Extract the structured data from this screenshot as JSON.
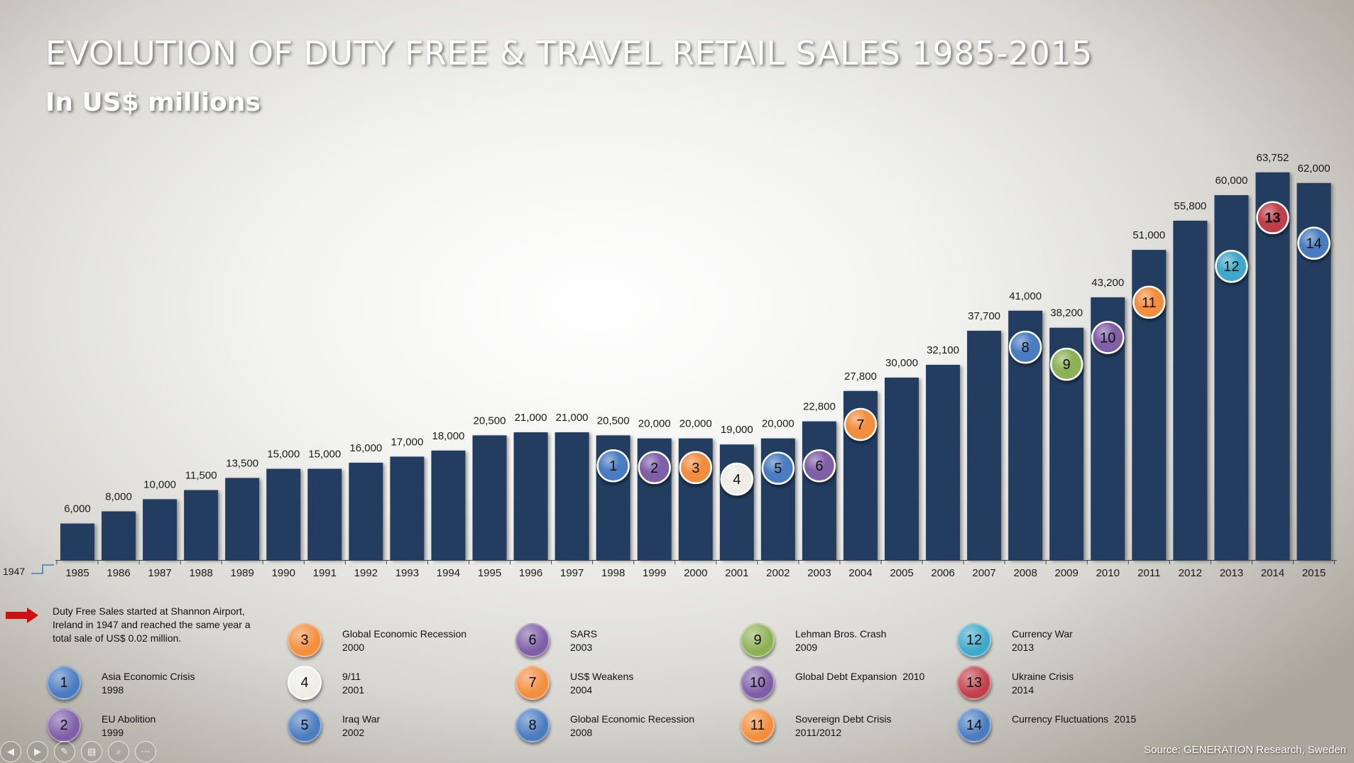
{
  "title": "EVOLUTION OF DUTY FREE & TRAVEL RETAIL SALES 1985-2015",
  "subtitle": "In US$ millions",
  "start_label": "1947",
  "note": "Duty Free Sales started at Shannon Airport, Ireland in 1947 and reached the same year a total sale of US$ 0.02 million.",
  "source": "Source: GENERATION Research, Sweden",
  "colors": {
    "bar": "#233d60",
    "axis": "#444444",
    "arrow": "#cc1111",
    "start_line": "#4a78b8"
  },
  "chart_data": {
    "type": "bar",
    "title": "EVOLUTION OF DUTY FREE & TRAVEL RETAIL SALES 1985-2015",
    "subtitle": "In US$ millions",
    "categories": [
      "1985",
      "1986",
      "1987",
      "1988",
      "1989",
      "1990",
      "1991",
      "1992",
      "1993",
      "1994",
      "1995",
      "1996",
      "1997",
      "1998",
      "1999",
      "2000",
      "2001",
      "2002",
      "2003",
      "2004",
      "2005",
      "2006",
      "2007",
      "2008",
      "2009",
      "2010",
      "2011",
      "2012",
      "2013",
      "2014",
      "2015"
    ],
    "values": [
      6000,
      8000,
      10000,
      11500,
      13500,
      15000,
      15000,
      16000,
      17000,
      18000,
      20500,
      21000,
      21000,
      20500,
      20000,
      20000,
      19000,
      20000,
      22800,
      27800,
      30000,
      32100,
      37700,
      41000,
      38200,
      43200,
      51000,
      55800,
      60000,
      63752,
      62000
    ],
    "value_labels": [
      "6,000",
      "8,000",
      "10,000",
      "11,500",
      "13,500",
      "15,000",
      "15,000",
      "16,000",
      "17,000",
      "18,000",
      "20,500",
      "21,000",
      "21,000",
      "20,500",
      "20,000",
      "20,000",
      "19,000",
      "20,000",
      "22,800",
      "27,800",
      "30,000",
      "32,100",
      "37,700",
      "41,000",
      "38,200",
      "43,200",
      "51,000",
      "55,800",
      "60,000",
      "63,752",
      "62,000"
    ],
    "ylim": [
      0,
      66000
    ],
    "grid": false,
    "annotations": [
      {
        "id": 1,
        "year": "1998",
        "level": 15500,
        "color": "#4a7cc0"
      },
      {
        "id": 2,
        "year": "1999",
        "level": 15200,
        "color": "#7f5ea6"
      },
      {
        "id": 3,
        "year": "2000",
        "level": 15200,
        "color": "#f28e3c"
      },
      {
        "id": 4,
        "year": "2001",
        "level": 13300,
        "color": "#eeeee6"
      },
      {
        "id": 5,
        "year": "2002",
        "level": 15100,
        "color": "#4a7cc0"
      },
      {
        "id": 6,
        "year": "2003",
        "level": 15500,
        "color": "#7f5ea6"
      },
      {
        "id": 7,
        "year": "2004",
        "level": 22300,
        "color": "#f28e3c"
      },
      {
        "id": 8,
        "year": "2008",
        "level": 35000,
        "color": "#4a7cc0"
      },
      {
        "id": 9,
        "year": "2009",
        "level": 32200,
        "color": "#8db254"
      },
      {
        "id": 10,
        "year": "2010",
        "level": 36600,
        "color": "#7f5ea6"
      },
      {
        "id": 11,
        "year": "2011",
        "level": 42400,
        "color": "#f28e3c"
      },
      {
        "id": 12,
        "year": "2013",
        "level": 48300,
        "color": "#3fa9c9"
      },
      {
        "id": 13,
        "year": "2014",
        "level": 56300,
        "color": "#c0404a"
      },
      {
        "id": 14,
        "year": "2015",
        "level": 52100,
        "color": "#4a7cc0"
      }
    ]
  },
  "legend": [
    {
      "id": "1",
      "name": "Asia Economic Crisis",
      "year": "1998",
      "color": "#4a7cc0"
    },
    {
      "id": "2",
      "name": "EU Abolition",
      "year": "1999",
      "color": "#7f5ea6"
    },
    {
      "id": "3",
      "name": "Global Economic Recession",
      "year": "2000",
      "color": "#f28e3c"
    },
    {
      "id": "4",
      "name": "9/11",
      "year": "2001",
      "color": "#eeeee6"
    },
    {
      "id": "5",
      "name": "Iraq War",
      "year": "2002",
      "color": "#4a7cc0"
    },
    {
      "id": "6",
      "name": "SARS",
      "year": "2003",
      "color": "#7f5ea6"
    },
    {
      "id": "7",
      "name": "US$ Weakens",
      "year": "2004",
      "color": "#f28e3c"
    },
    {
      "id": "8",
      "name": "Global Economic Recession",
      "year": "2008",
      "color": "#4a7cc0"
    },
    {
      "id": "9",
      "name": "Lehman Bros. Crash",
      "year": "2009",
      "color": "#8db254"
    },
    {
      "id": "10",
      "name": "Global Debt Expansion",
      "year": "2010",
      "color": "#7f5ea6"
    },
    {
      "id": "11",
      "name": "Sovereign Debt Crisis",
      "year": "2011/2012",
      "color": "#f28e3c"
    },
    {
      "id": "12",
      "name": "Currency War",
      "year": "2013",
      "color": "#3fa9c9"
    },
    {
      "id": "13",
      "name": "Ukraine Crisis",
      "year": "2014",
      "color": "#c0404a"
    },
    {
      "id": "14",
      "name": "Currency Fluctuations",
      "year": "2015",
      "color": "#4a7cc0"
    }
  ],
  "toolbar": [
    {
      "icon": "previous-icon",
      "glyph": "◀"
    },
    {
      "icon": "next-icon",
      "glyph": "▶"
    },
    {
      "icon": "pen-icon",
      "glyph": "✎"
    },
    {
      "icon": "slides-icon",
      "glyph": "▤"
    },
    {
      "icon": "zoom-icon",
      "glyph": "⌕"
    },
    {
      "icon": "more-icon",
      "glyph": "⋯"
    }
  ]
}
